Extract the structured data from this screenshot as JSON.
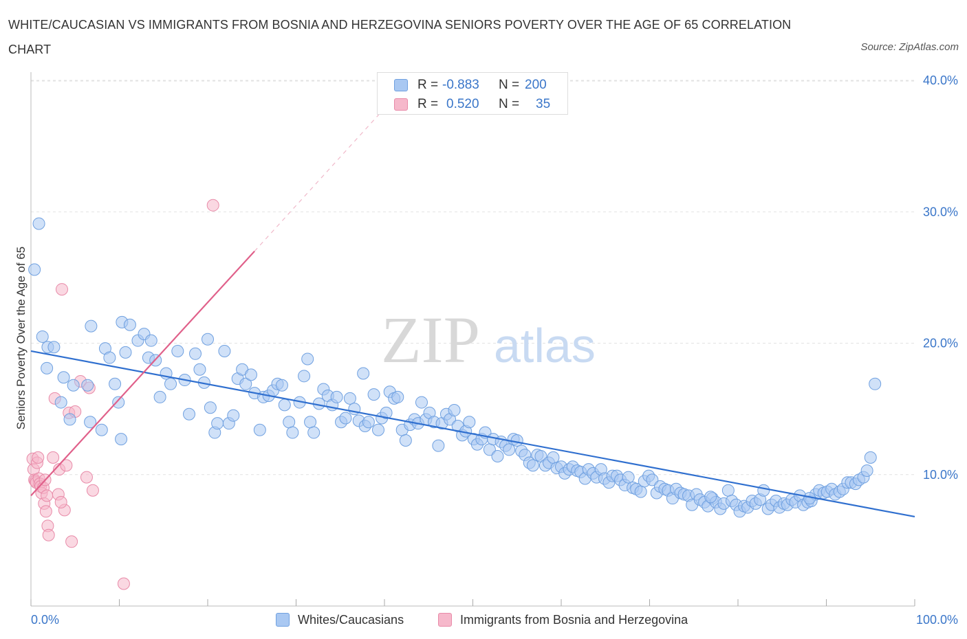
{
  "title": "WHITE/CAUCASIAN VS IMMIGRANTS FROM BOSNIA AND HERZEGOVINA SENIORS POVERTY OVER THE AGE OF 65 CORRELATION CHART",
  "source": "Source: ZipAtlas.com",
  "watermark": {
    "zip": "ZIP",
    "atlas": "atlas"
  },
  "legend": {
    "rows": [
      {
        "r_label": "R =",
        "r_value": "-0.883",
        "n_label": "N =",
        "n_value": "200",
        "color": "#a9c8f2"
      },
      {
        "r_label": "R =",
        "r_value": "0.520",
        "n_label": "N =",
        "n_value": "35",
        "color": "#f6b8cb"
      }
    ]
  },
  "bottom_legend": [
    {
      "label": "Whites/Caucasians",
      "color": "#a9c8f2"
    },
    {
      "label": "Immigrants from Bosnia and Herzegovina",
      "color": "#f6b8cb"
    }
  ],
  "chart_data": {
    "type": "scatter",
    "title": "WHITE/CAUCASIAN VS IMMIGRANTS FROM BOSNIA AND HERZEGOVINA SENIORS POVERTY OVER THE AGE OF 65 CORRELATION CHART",
    "xlabel": "",
    "ylabel": "Seniors Poverty Over the Age of 65",
    "xlim": [
      0,
      100
    ],
    "ylim": [
      0,
      40
    ],
    "x_tick_labels": [
      "0.0%",
      "100.0%"
    ],
    "y_ticks": [
      10,
      20,
      30,
      40
    ],
    "y_tick_labels": [
      "10.0%",
      "20.0%",
      "30.0%",
      "40.0%"
    ],
    "grid": true,
    "colors": {
      "blue_fill": "#a9c8f2",
      "blue_stroke": "#6fa0e0",
      "blue_line": "#2f6fcf",
      "pink_fill": "#f6b8cb",
      "pink_stroke": "#e88aa8",
      "pink_line": "#e0608a",
      "tick_text": "#3a76c9"
    },
    "series": [
      {
        "name": "Whites/Caucasians",
        "trend": {
          "x": [
            0,
            100
          ],
          "y": [
            19.4,
            6.8
          ]
        },
        "points": [
          [
            0.9,
            29.1
          ],
          [
            0.4,
            25.6
          ],
          [
            1.3,
            20.5
          ],
          [
            1.9,
            19.7
          ],
          [
            2.6,
            19.7
          ],
          [
            1.8,
            18.1
          ],
          [
            3.7,
            17.4
          ],
          [
            4.8,
            16.8
          ],
          [
            3.4,
            15.5
          ],
          [
            4.4,
            14.2
          ],
          [
            6.4,
            16.8
          ],
          [
            6.7,
            14.0
          ],
          [
            8.0,
            13.4
          ],
          [
            6.8,
            21.3
          ],
          [
            8.4,
            19.6
          ],
          [
            8.9,
            18.9
          ],
          [
            9.5,
            16.9
          ],
          [
            9.9,
            15.5
          ],
          [
            10.2,
            12.7
          ],
          [
            10.3,
            21.6
          ],
          [
            11.2,
            21.4
          ],
          [
            10.7,
            19.3
          ],
          [
            12.1,
            20.2
          ],
          [
            12.8,
            20.7
          ],
          [
            13.6,
            20.2
          ],
          [
            13.3,
            18.9
          ],
          [
            14.1,
            18.7
          ],
          [
            15.3,
            17.7
          ],
          [
            14.6,
            15.9
          ],
          [
            15.8,
            16.9
          ],
          [
            16.6,
            19.4
          ],
          [
            17.4,
            17.2
          ],
          [
            17.9,
            14.6
          ],
          [
            18.6,
            19.2
          ],
          [
            19.1,
            18.0
          ],
          [
            19.6,
            17.0
          ],
          [
            20.0,
            20.3
          ],
          [
            20.3,
            15.1
          ],
          [
            20.8,
            13.2
          ],
          [
            21.1,
            13.9
          ],
          [
            21.9,
            19.4
          ],
          [
            22.4,
            13.9
          ],
          [
            22.9,
            14.5
          ],
          [
            23.4,
            17.3
          ],
          [
            23.9,
            18.0
          ],
          [
            24.3,
            16.9
          ],
          [
            24.9,
            17.6
          ],
          [
            25.3,
            16.2
          ],
          [
            25.9,
            13.4
          ],
          [
            26.3,
            15.9
          ],
          [
            26.9,
            16.0
          ],
          [
            27.4,
            16.4
          ],
          [
            27.9,
            16.9
          ],
          [
            28.4,
            16.8
          ],
          [
            28.7,
            15.3
          ],
          [
            29.2,
            14.0
          ],
          [
            29.6,
            13.2
          ],
          [
            30.4,
            15.5
          ],
          [
            30.9,
            17.5
          ],
          [
            31.3,
            18.8
          ],
          [
            31.6,
            14.0
          ],
          [
            32.0,
            13.2
          ],
          [
            32.6,
            15.4
          ],
          [
            33.1,
            16.5
          ],
          [
            33.6,
            16.0
          ],
          [
            34.1,
            15.3
          ],
          [
            34.6,
            15.9
          ],
          [
            35.1,
            14.0
          ],
          [
            35.6,
            14.3
          ],
          [
            36.1,
            15.8
          ],
          [
            36.6,
            15.0
          ],
          [
            37.1,
            14.1
          ],
          [
            37.6,
            17.7
          ],
          [
            37.8,
            13.7
          ],
          [
            38.2,
            14.0
          ],
          [
            38.8,
            16.1
          ],
          [
            39.3,
            13.4
          ],
          [
            39.7,
            14.3
          ],
          [
            40.2,
            14.7
          ],
          [
            40.6,
            16.3
          ],
          [
            41.1,
            15.8
          ],
          [
            41.5,
            15.9
          ],
          [
            42.0,
            13.4
          ],
          [
            42.4,
            12.6
          ],
          [
            42.9,
            13.8
          ],
          [
            43.4,
            14.2
          ],
          [
            43.8,
            13.9
          ],
          [
            44.2,
            15.5
          ],
          [
            44.7,
            14.2
          ],
          [
            45.1,
            14.7
          ],
          [
            45.6,
            14.0
          ],
          [
            46.1,
            12.2
          ],
          [
            46.5,
            13.9
          ],
          [
            47.0,
            14.6
          ],
          [
            47.4,
            14.2
          ],
          [
            47.9,
            14.9
          ],
          [
            48.3,
            13.7
          ],
          [
            48.8,
            13.0
          ],
          [
            49.2,
            13.3
          ],
          [
            49.6,
            14.0
          ],
          [
            50.1,
            12.7
          ],
          [
            50.5,
            12.3
          ],
          [
            51.0,
            12.7
          ],
          [
            51.4,
            13.2
          ],
          [
            51.9,
            11.9
          ],
          [
            52.3,
            12.7
          ],
          [
            52.8,
            11.4
          ],
          [
            53.2,
            12.5
          ],
          [
            53.7,
            12.2
          ],
          [
            54.1,
            11.9
          ],
          [
            54.6,
            12.7
          ],
          [
            55.0,
            12.6
          ],
          [
            55.5,
            11.8
          ],
          [
            55.9,
            11.5
          ],
          [
            56.4,
            10.9
          ],
          [
            56.8,
            10.7
          ],
          [
            57.3,
            11.5
          ],
          [
            57.7,
            11.4
          ],
          [
            58.2,
            10.7
          ],
          [
            58.6,
            10.9
          ],
          [
            59.1,
            11.3
          ],
          [
            59.5,
            10.5
          ],
          [
            60.0,
            10.6
          ],
          [
            60.4,
            10.1
          ],
          [
            60.9,
            10.4
          ],
          [
            61.3,
            10.6
          ],
          [
            61.8,
            10.3
          ],
          [
            62.2,
            10.2
          ],
          [
            62.7,
            9.7
          ],
          [
            63.1,
            10.4
          ],
          [
            63.6,
            10.1
          ],
          [
            64.0,
            9.8
          ],
          [
            64.5,
            10.4
          ],
          [
            64.9,
            9.7
          ],
          [
            65.4,
            9.4
          ],
          [
            65.8,
            9.9
          ],
          [
            66.3,
            9.9
          ],
          [
            66.7,
            9.6
          ],
          [
            67.2,
            9.2
          ],
          [
            67.6,
            9.8
          ],
          [
            68.1,
            9.0
          ],
          [
            68.5,
            8.9
          ],
          [
            69.0,
            8.7
          ],
          [
            69.4,
            9.5
          ],
          [
            69.9,
            9.9
          ],
          [
            70.3,
            9.6
          ],
          [
            70.8,
            8.6
          ],
          [
            71.2,
            9.1
          ],
          [
            71.7,
            8.9
          ],
          [
            72.1,
            8.8
          ],
          [
            72.6,
            8.2
          ],
          [
            73.0,
            8.9
          ],
          [
            73.5,
            8.6
          ],
          [
            73.9,
            8.5
          ],
          [
            74.4,
            8.4
          ],
          [
            74.8,
            7.7
          ],
          [
            75.3,
            8.5
          ],
          [
            75.7,
            8.1
          ],
          [
            76.2,
            7.9
          ],
          [
            76.6,
            7.6
          ],
          [
            77.1,
            8.2
          ],
          [
            77.5,
            7.9
          ],
          [
            78.0,
            7.4
          ],
          [
            78.4,
            7.8
          ],
          [
            78.9,
            8.8
          ],
          [
            79.3,
            8.0
          ],
          [
            79.8,
            7.7
          ],
          [
            80.2,
            7.2
          ],
          [
            80.7,
            7.6
          ],
          [
            81.1,
            7.5
          ],
          [
            81.6,
            8.0
          ],
          [
            82.0,
            7.8
          ],
          [
            82.5,
            8.1
          ],
          [
            82.9,
            8.8
          ],
          [
            83.4,
            7.4
          ],
          [
            83.8,
            7.7
          ],
          [
            84.3,
            8.0
          ],
          [
            84.7,
            7.5
          ],
          [
            85.2,
            7.8
          ],
          [
            85.6,
            7.7
          ],
          [
            86.1,
            8.1
          ],
          [
            86.5,
            7.9
          ],
          [
            87.0,
            8.4
          ],
          [
            87.4,
            7.7
          ],
          [
            87.9,
            7.9
          ],
          [
            88.3,
            8.0
          ],
          [
            88.8,
            8.5
          ],
          [
            89.2,
            8.8
          ],
          [
            89.7,
            8.6
          ],
          [
            90.1,
            8.7
          ],
          [
            90.6,
            8.9
          ],
          [
            91.0,
            8.5
          ],
          [
            91.5,
            8.7
          ],
          [
            91.9,
            8.9
          ],
          [
            92.4,
            9.4
          ],
          [
            92.8,
            9.4
          ],
          [
            93.3,
            9.3
          ],
          [
            93.7,
            9.6
          ],
          [
            94.2,
            9.8
          ],
          [
            94.6,
            10.3
          ],
          [
            95.0,
            11.3
          ],
          [
            95.5,
            16.9
          ],
          [
            88.1,
            8.2
          ],
          [
            76.9,
            8.3
          ]
        ]
      },
      {
        "name": "Immigrants from Bosnia and Herzegovina",
        "trend": {
          "x": [
            0,
            25.3
          ],
          "y": [
            8.4,
            27.0
          ]
        },
        "trend_dashed": {
          "x": [
            25.3,
            39.5
          ],
          "y": [
            27.0,
            37.5
          ]
        },
        "points": [
          [
            0.2,
            11.2
          ],
          [
            0.3,
            10.4
          ],
          [
            0.4,
            9.6
          ],
          [
            0.5,
            9.5
          ],
          [
            0.6,
            9.4
          ],
          [
            0.7,
            10.9
          ],
          [
            0.8,
            11.3
          ],
          [
            0.9,
            9.7
          ],
          [
            1.0,
            9.3
          ],
          [
            1.1,
            9.1
          ],
          [
            1.2,
            8.6
          ],
          [
            1.4,
            9.0
          ],
          [
            1.5,
            7.8
          ],
          [
            1.6,
            9.6
          ],
          [
            1.7,
            7.2
          ],
          [
            1.8,
            8.4
          ],
          [
            1.9,
            6.1
          ],
          [
            2.0,
            5.4
          ],
          [
            2.5,
            11.3
          ],
          [
            2.7,
            15.8
          ],
          [
            3.1,
            8.5
          ],
          [
            3.2,
            10.4
          ],
          [
            3.5,
            24.1
          ],
          [
            3.8,
            7.3
          ],
          [
            4.0,
            10.7
          ],
          [
            4.3,
            14.7
          ],
          [
            4.6,
            4.9
          ],
          [
            5.0,
            14.8
          ],
          [
            5.6,
            17.1
          ],
          [
            6.3,
            9.8
          ],
          [
            6.6,
            16.6
          ],
          [
            7.0,
            8.8
          ],
          [
            10.5,
            1.7
          ],
          [
            20.6,
            30.5
          ],
          [
            3.4,
            7.9
          ]
        ]
      }
    ]
  }
}
